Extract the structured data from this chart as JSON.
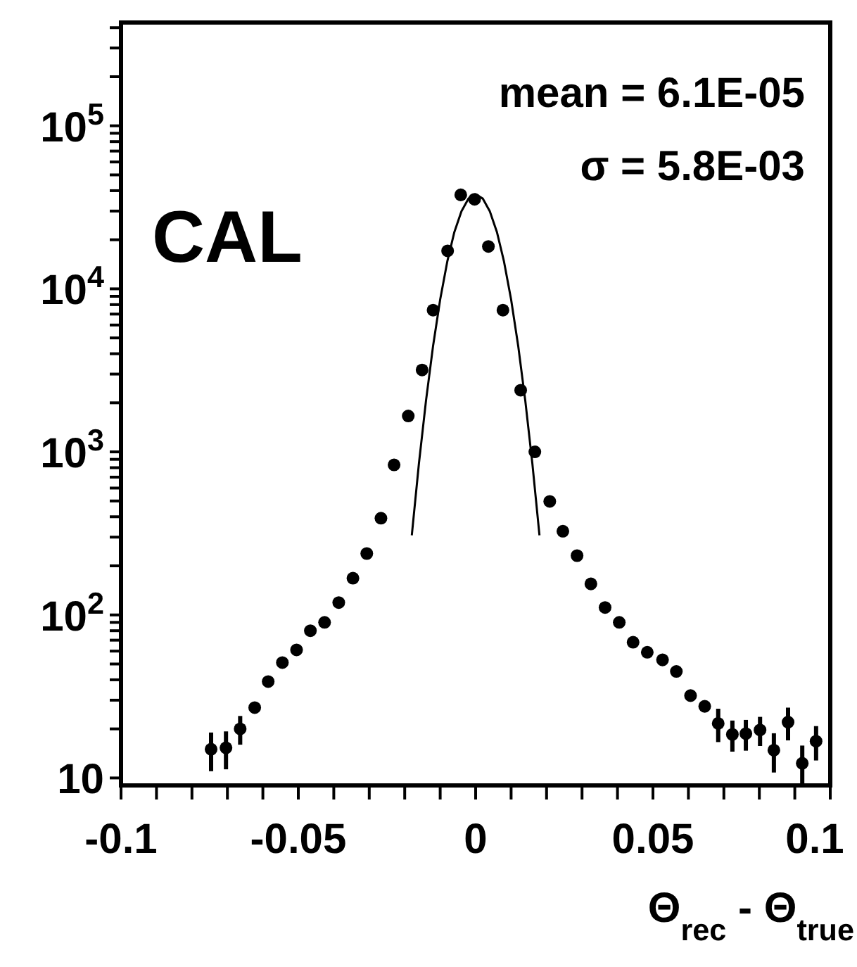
{
  "chart_data": {
    "type": "scatter",
    "title": "CAL",
    "xlabel": "Θ$_{rec}$ - Θ$_{true}$",
    "annotations": [
      "mean = 6.1E-05",
      "σ = 5.8E-03"
    ],
    "xlim": [
      -0.1,
      0.1
    ],
    "xticks": [
      -0.1,
      {
        "value": -0.09,
        "label": null
      },
      {
        "value": -0.08,
        "label": null
      },
      {
        "value": -0.07,
        "label": null
      },
      {
        "value": -0.06,
        "label": null
      },
      -0.05,
      {
        "value": -0.04,
        "label": null
      },
      {
        "value": -0.03,
        "label": null
      },
      {
        "value": -0.02,
        "label": null
      },
      {
        "value": -0.01,
        "label": null
      },
      0,
      {
        "value": 0.01,
        "label": null
      },
      {
        "value": 0.02,
        "label": null
      },
      {
        "value": 0.03,
        "label": null
      },
      {
        "value": 0.04,
        "label": null
      },
      0.05,
      {
        "value": 0.06,
        "label": null
      },
      {
        "value": 0.07,
        "label": null
      },
      {
        "value": 0.08,
        "label": null
      },
      {
        "value": 0.09,
        "label": null
      },
      0.1
    ],
    "ylim": [
      9,
      430000
    ],
    "log": true,
    "yticks": [
      10,
      {
        "value": 20,
        "label": null
      },
      {
        "value": 30,
        "label": null
      },
      {
        "value": 40,
        "label": null
      },
      {
        "value": 50,
        "label": null
      },
      {
        "value": 60,
        "label": null
      },
      {
        "value": 70,
        "label": null
      },
      {
        "value": 80,
        "label": null
      },
      {
        "value": 90,
        "label": null
      },
      {
        "value": 100,
        "label": "10$^{2}$"
      },
      {
        "value": 200,
        "label": null
      },
      {
        "value": 300,
        "label": null
      },
      {
        "value": 400,
        "label": null
      },
      {
        "value": 500,
        "label": null
      },
      {
        "value": 600,
        "label": null
      },
      {
        "value": 700,
        "label": null
      },
      {
        "value": 800,
        "label": null
      },
      {
        "value": 900,
        "label": null
      },
      {
        "value": 1000,
        "label": "10$^{3}$"
      },
      {
        "value": 2000,
        "label": null
      },
      {
        "value": 3000,
        "label": null
      },
      {
        "value": 4000,
        "label": null
      },
      {
        "value": 5000,
        "label": null
      },
      {
        "value": 6000,
        "label": null
      },
      {
        "value": 7000,
        "label": null
      },
      {
        "value": 8000,
        "label": null
      },
      {
        "value": 9000,
        "label": null
      },
      {
        "value": 10000,
        "label": "10$^{4}$"
      },
      {
        "value": 20000,
        "label": null
      },
      {
        "value": 30000,
        "label": null
      },
      {
        "value": 40000,
        "label": null
      },
      {
        "value": 50000,
        "label": null
      },
      {
        "value": 60000,
        "label": null
      },
      {
        "value": 70000,
        "label": null
      },
      {
        "value": 80000,
        "label": null
      },
      {
        "value": 90000,
        "label": null
      },
      {
        "value": 100000,
        "label": "10$^{5}$"
      },
      {
        "value": 200000,
        "label": null
      },
      {
        "value": 300000,
        "label": null
      },
      {
        "value": 400000,
        "label": null
      }
    ],
    "grid": false,
    "marker": "circle",
    "series": [
      {
        "type": "scatter",
        "color": "#000000",
        "x": [
          -0.0746,
          -0.0704,
          -0.0664,
          -0.0623,
          -0.0585,
          -0.0545,
          -0.0505,
          -0.0466,
          -0.0426,
          -0.0386,
          -0.0346,
          -0.0307,
          -0.0267,
          -0.023,
          -0.019,
          -0.0151,
          -0.012,
          -0.0079,
          -0.0042,
          -0.0003,
          0.0036,
          0.0077,
          0.0127,
          0.0167,
          0.0209,
          0.0246,
          0.0286,
          0.0325,
          0.0365,
          0.0405,
          0.0444,
          0.0484,
          0.0527,
          0.0566,
          0.0606,
          0.0646,
          0.0684,
          0.0724,
          0.0762,
          0.0802,
          0.0841,
          0.0881,
          0.0921,
          0.096
        ],
        "values": [
          15,
          15.3,
          20,
          27,
          39,
          51,
          61,
          80,
          90,
          119,
          168,
          238,
          392,
          832,
          1660,
          3180,
          7400,
          17100,
          37700,
          35400,
          18200,
          7400,
          2390,
          1000,
          497,
          326,
          231,
          155,
          111,
          90,
          68,
          59,
          53,
          45,
          32,
          27.5,
          21.6,
          18.5,
          18.7,
          19.7,
          14.8,
          22,
          12.3,
          16.8
        ],
        "errors": [
          4,
          4,
          4,
          null,
          null,
          null,
          null,
          null,
          null,
          null,
          null,
          null,
          null,
          null,
          null,
          null,
          null,
          null,
          null,
          null,
          null,
          null,
          null,
          null,
          null,
          null,
          null,
          null,
          null,
          null,
          null,
          null,
          null,
          null,
          null,
          null,
          5,
          4,
          4,
          4,
          4,
          5,
          3.5,
          4
        ]
      },
      {
        "type": "line",
        "color": "#000000",
        "marker": "none",
        "line_style": "solid",
        "x": [
          -0.018,
          -0.016,
          -0.014,
          -0.012,
          -0.01,
          -0.008,
          -0.006,
          -0.004,
          -0.002,
          0,
          0.002,
          0.004,
          0.006,
          0.008,
          0.01,
          0.012,
          0.014,
          0.016,
          0.018
        ],
        "values": [
          308,
          846,
          2060,
          4470,
          8600,
          14700,
          22300,
          29900,
          35800,
          38000,
          35800,
          29900,
          22300,
          14700,
          8600,
          4470,
          2060,
          846,
          308
        ]
      }
    ]
  }
}
